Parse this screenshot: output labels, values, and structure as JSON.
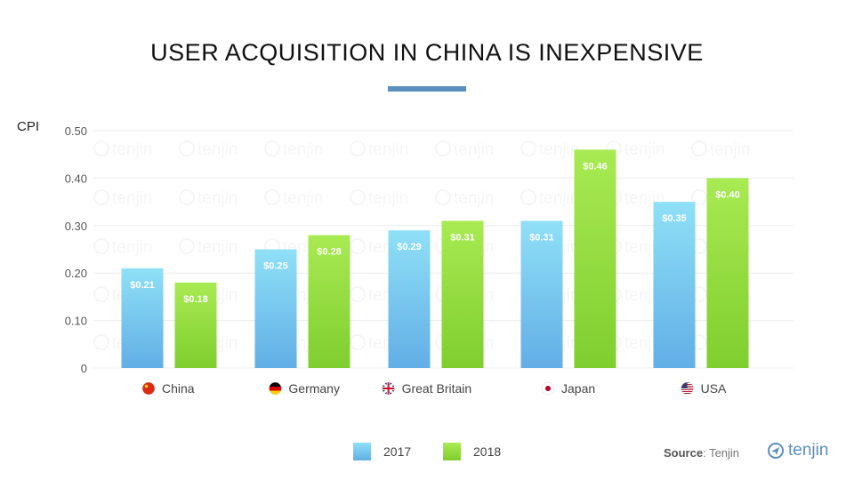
{
  "title": "USER ACQUISITION IN CHINA IS INEXPENSIVE",
  "source_label": "Source",
  "source_value": ": Tenjin",
  "logo_text": "tenjin",
  "watermark_text": "tenjin",
  "colors": {
    "s2017_top": "#8fe0f7",
    "s2017_bottom": "#62aee6",
    "s2018_top": "#a8ea52",
    "s2018_bottom": "#7fce2f",
    "accent": "#5a8fbf"
  },
  "chart_data": {
    "type": "bar",
    "ylabel": "CPI",
    "ylim": [
      0,
      0.5
    ],
    "yticks": [
      0,
      0.1,
      0.2,
      0.3,
      0.4,
      0.5
    ],
    "ytick_labels": [
      "0",
      "0.10",
      "0.20",
      "0.30",
      "0.40",
      "0.50"
    ],
    "categories": [
      "China",
      "Germany",
      "Great Britain",
      "Japan",
      "USA"
    ],
    "category_icons": [
      "china-flag-icon",
      "germany-flag-icon",
      "great-britain-flag-icon",
      "japan-flag-icon",
      "usa-flag-icon"
    ],
    "series": [
      {
        "name": "2017",
        "values": [
          0.21,
          0.25,
          0.29,
          0.31,
          0.35
        ],
        "labels": [
          "$0.21",
          "$0.25",
          "$0.29",
          "$0.31",
          "$0.35"
        ]
      },
      {
        "name": "2018",
        "values": [
          0.18,
          0.28,
          0.31,
          0.46,
          0.4
        ],
        "labels": [
          "$0.18",
          "$0.28",
          "$0.31",
          "$0.46",
          "$0.40"
        ]
      }
    ],
    "legend_position": "bottom"
  }
}
